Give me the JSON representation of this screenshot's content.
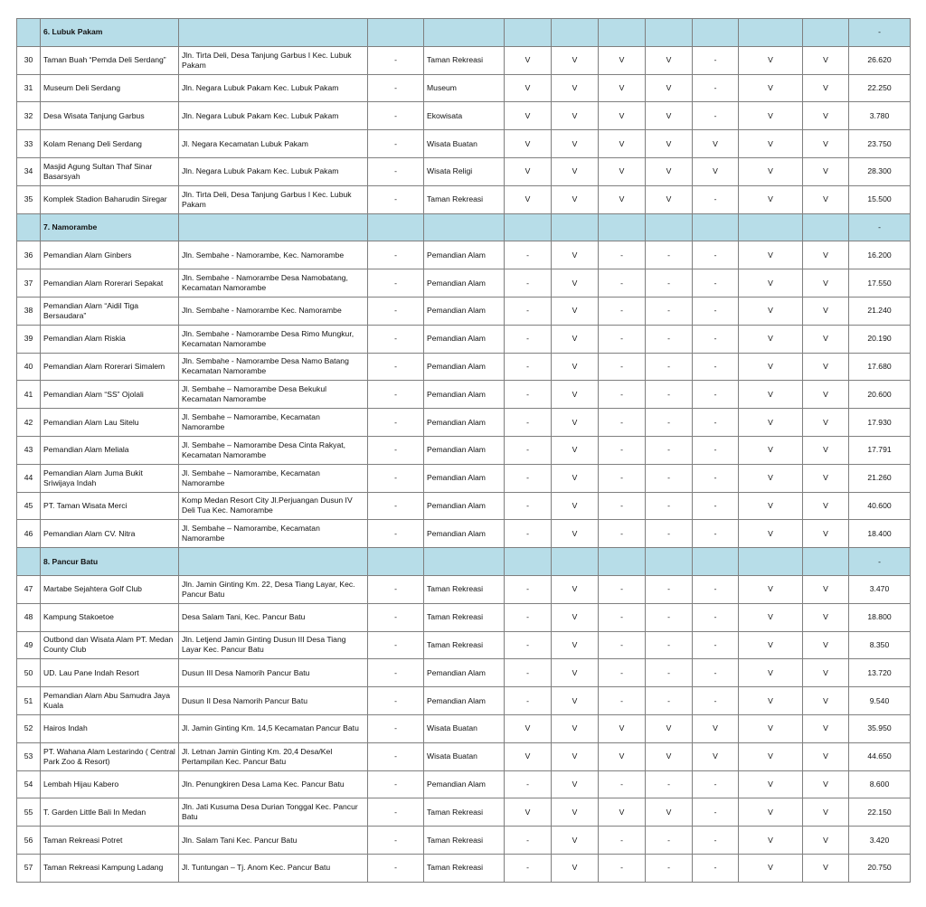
{
  "table": {
    "rows": [
      {
        "section": "6.  Lubuk Pakam",
        "total": "-"
      },
      [
        "30",
        "Taman Buah “Pemda Deli Serdang”",
        "Jln. Tirta Deli, Desa Tanjung Garbus I Kec. Lubuk Pakam",
        "-",
        "Taman Rekreasi",
        "V",
        "V",
        "V",
        "V",
        "-",
        "V",
        "V",
        "26.620"
      ],
      [
        "31",
        "Museum Deli Serdang",
        "Jln. Negara Lubuk Pakam Kec. Lubuk Pakam",
        "-",
        "Museum",
        "V",
        "V",
        "V",
        "V",
        "-",
        "V",
        "V",
        "22.250"
      ],
      [
        "32",
        "Desa Wisata Tanjung Garbus",
        "Jln. Negara Lubuk Pakam Kec. Lubuk Pakam",
        "-",
        "Ekowisata",
        "V",
        "V",
        "V",
        "V",
        "-",
        "V",
        "V",
        "3.780"
      ],
      [
        "33",
        "Kolam Renang Deli Serdang",
        "Jl. Negara Kecamatan Lubuk Pakam",
        "-",
        "Wisata Buatan",
        "V",
        "V",
        "V",
        "V",
        "V",
        "V",
        "V",
        "23.750"
      ],
      [
        "34",
        "Masjid Agung Sultan Thaf Sinar Basarsyah",
        "Jln. Negara Lubuk Pakam Kec. Lubuk Pakam",
        "-",
        "Wisata Religi",
        "V",
        "V",
        "V",
        "V",
        "V",
        "V",
        "V",
        "28.300"
      ],
      [
        "35",
        "Komplek Stadion Baharudin Siregar",
        "Jln. Tirta Deli, Desa Tanjung Garbus I Kec. Lubuk Pakam",
        "-",
        "Taman Rekreasi",
        "V",
        "V",
        "V",
        "V",
        "-",
        "V",
        "V",
        "15.500"
      ],
      {
        "section": "7.  Namorambe",
        "total": "-"
      },
      [
        "36",
        "Pemandian Alam Ginbers",
        "Jln. Sembahe - Namorambe, Kec. Namorambe",
        "-",
        "Pemandian Alam",
        "-",
        "V",
        "-",
        "-",
        "-",
        "V",
        "V",
        "16.200"
      ],
      [
        "37",
        "Pemandian Alam Rorerari Sepakat",
        "Jln. Sembahe - Namorambe Desa Namobatang, Kecamatan Namorambe",
        "-",
        "Pemandian Alam",
        "-",
        "V",
        "-",
        "-",
        "-",
        "V",
        "V",
        "17.550"
      ],
      [
        "38",
        "Pemandian Alam “Aidil Tiga Bersaudara”",
        "Jln. Sembahe - Namorambe Kec. Namorambe",
        "-",
        "Pemandian Alam",
        "-",
        "V",
        "-",
        "-",
        "-",
        "V",
        "V",
        "21.240"
      ],
      [
        "39",
        "Pemandian Alam Riskia",
        "Jln. Sembahe - Namorambe Desa Rimo Mungkur, Kecamatan Namorambe",
        "-",
        "Pemandian Alam",
        "-",
        "V",
        "-",
        "-",
        "-",
        "V",
        "V",
        "20.190"
      ],
      [
        "40",
        "Pemandian Alam Rorerari Simalem",
        "Jln. Sembahe - Namorambe Desa Namo Batang Kecamatan Namorambe",
        "-",
        "Pemandian Alam",
        "-",
        "V",
        "-",
        "-",
        "-",
        "V",
        "V",
        "17.680"
      ],
      [
        "41",
        "Pemandian Alam “SS” Ojolali",
        "Jl. Sembahe – Namorambe Desa Bekukul Kecamatan Namorambe",
        "-",
        "Pemandian Alam",
        "-",
        "V",
        "-",
        "-",
        "-",
        "V",
        "V",
        "20.600"
      ],
      [
        "42",
        "Pemandian Alam Lau Sitelu",
        "Jl. Sembahe – Namorambe, Kecamatan Namorambe",
        "-",
        "Pemandian Alam",
        "-",
        "V",
        "-",
        "-",
        "-",
        "V",
        "V",
        "17.930"
      ],
      [
        "43",
        "Pemandian Alam Meliala",
        "Jl. Sembahe – Namorambe Desa Cinta Rakyat, Kecamatan Namorambe",
        "-",
        "Pemandian Alam",
        "-",
        "V",
        "-",
        "-",
        "-",
        "V",
        "V",
        "17.791"
      ],
      [
        "44",
        "Pemandian Alam Juma Bukit Sriwijaya Indah",
        "Jl. Sembahe – Namorambe, Kecamatan Namorambe",
        "-",
        "Pemandian Alam",
        "-",
        "V",
        "-",
        "-",
        "-",
        "V",
        "V",
        "21.260"
      ],
      [
        "45",
        "PT. Taman Wisata Merci",
        "Komp Medan Resort City Jl.Perjuangan Dusun IV Deli Tua Kec. Namorambe",
        "-",
        "Pemandian Alam",
        "-",
        "V",
        "-",
        "-",
        "-",
        "V",
        "V",
        "40.600"
      ],
      [
        "46",
        "Pemandian Alam CV. Nitra",
        "Jl. Sembahe – Namorambe, Kecamatan Namorambe",
        "-",
        "Pemandian Alam",
        "-",
        "V",
        "-",
        "-",
        "-",
        "V",
        "V",
        "18.400"
      ],
      {
        "section": "8.  Pancur Batu",
        "total": "-"
      },
      [
        "47",
        "Martabe Sejahtera Golf Club",
        "Jln. Jamin Ginting Km. 22, Desa Tiang Layar, Kec. Pancur Batu",
        "-",
        "Taman Rekreasi",
        "-",
        "V",
        "-",
        "-",
        "-",
        "V",
        "V",
        "3.470"
      ],
      [
        "48",
        "Kampung Stakoetoe",
        "Desa Salam Tani, Kec. Pancur Batu",
        "-",
        "Taman Rekreasi",
        "-",
        "V",
        "-",
        "-",
        "-",
        "V",
        "V",
        "18.800"
      ],
      [
        "49",
        "Outbond dan Wisata Alam PT. Medan County Club",
        "Jln. Letjend Jamin Ginting Dusun III Desa Tiang Layar Kec. Pancur Batu",
        "-",
        "Taman Rekreasi",
        "-",
        "V",
        "-",
        "-",
        "-",
        "V",
        "V",
        "8.350"
      ],
      [
        "50",
        "UD. Lau Pane Indah Resort",
        "Dusun III Desa Namorih Pancur Batu",
        "-",
        "Pemandian Alam",
        "-",
        "V",
        "-",
        "-",
        "-",
        "V",
        "V",
        "13.720"
      ],
      [
        "51",
        "Pemandian Alam Abu Samudra Jaya Kuala",
        "Dusun II Desa Namorih Pancur Batu",
        "-",
        "Pemandian Alam",
        "-",
        "V",
        "-",
        "-",
        "-",
        "V",
        "V",
        "9.540"
      ],
      [
        "52",
        "Hairos Indah",
        "Jl. Jamin Ginting Km. 14,5 Kecamatan Pancur Batu",
        "-",
        "Wisata Buatan",
        "V",
        "V",
        "V",
        "V",
        "V",
        "V",
        "V",
        "35.950"
      ],
      [
        "53",
        "PT. Wahana Alam Lestarindo ( Central Park Zoo & Resort)",
        "Jl. Letnan Jamin Ginting Km. 20,4 Desa/Kel Pertampilan Kec. Pancur Batu",
        "-",
        "Wisata Buatan",
        "V",
        "V",
        "V",
        "V",
        "V",
        "V",
        "V",
        "44.650"
      ],
      [
        "54",
        "Lembah Hijau Kabero",
        "Jln. Penungkiren Desa Lama Kec. Pancur Batu",
        "-",
        "Pemandian Alam",
        "-",
        "V",
        "-",
        "-",
        "-",
        "V",
        "V",
        "8.600"
      ],
      [
        "55",
        "T. Garden Little Bali In Medan",
        "Jln. Jati Kusuma Desa Durian Tonggal Kec. Pancur Batu",
        "-",
        "Taman Rekreasi",
        "V",
        "V",
        "V",
        "V",
        "-",
        "V",
        "V",
        "22.150"
      ],
      [
        "56",
        "Taman Rekreasi Potret",
        "Jln. Salam Tani Kec. Pancur Batu",
        "-",
        "Taman Rekreasi",
        "-",
        "V",
        "-",
        "-",
        "-",
        "V",
        "V",
        "3.420"
      ],
      [
        "57",
        "Taman Rekreasi Kampung Ladang",
        "Jl. Tuntungan – Tj. Anom Kec. Pancur Batu",
        "-",
        "Taman Rekreasi",
        "-",
        "V",
        "-",
        "-",
        "-",
        "V",
        "V",
        "20.750"
      ]
    ]
  }
}
